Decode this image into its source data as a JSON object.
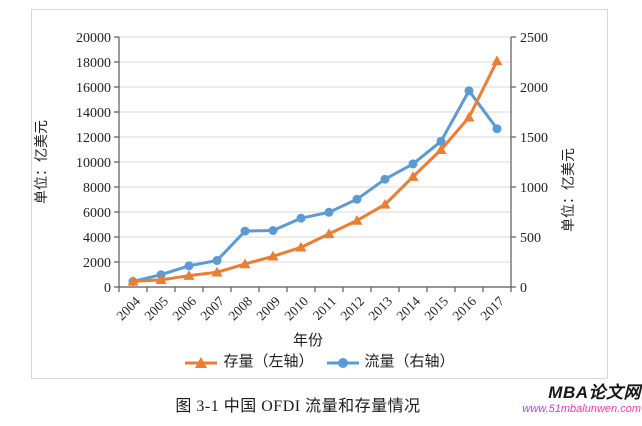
{
  "caption": "图 3-1  中国 OFDI 流量和存量情况",
  "watermark": {
    "site_name": "MBA论文网",
    "site_url": "www.51mbalunwen.com",
    "name_color": "#161616",
    "url_color_start": "#8a4fe8",
    "url_color_end": "#ff2fb4"
  },
  "chart_data": {
    "type": "line",
    "title": "图 3-1 中国 OFDI 流量和存量情况",
    "xlabel": "年份",
    "categories": [
      "2004",
      "2005",
      "2006",
      "2007",
      "2008",
      "2009",
      "2010",
      "2011",
      "2012",
      "2013",
      "2014",
      "2015",
      "2016",
      "2017"
    ],
    "left_axis": {
      "label": "单位：亿美元",
      "lim": [
        0,
        20000
      ],
      "ticks": [
        0,
        2000,
        4000,
        6000,
        8000,
        10000,
        12000,
        14000,
        16000,
        18000,
        20000
      ]
    },
    "right_axis": {
      "label": "单位：亿美元",
      "lim": [
        0,
        2500
      ],
      "ticks": [
        0,
        500,
        1000,
        1500,
        2000,
        2500
      ]
    },
    "grid": true,
    "legend_position": "bottom",
    "series": [
      {
        "name": "存量（左轴）",
        "axis": "left",
        "marker": "triangle",
        "color": "#ED7D31",
        "values": [
          448,
          572,
          906,
          1179,
          1840,
          2458,
          3172,
          4248,
          5319,
          6605,
          8826,
          10979,
          13574,
          18090
        ]
      },
      {
        "name": "流量（右轴）",
        "axis": "right",
        "marker": "circle",
        "color": "#5B9BD5",
        "values": [
          55,
          123,
          212,
          265,
          559,
          565,
          688,
          747,
          878,
          1078,
          1231,
          1457,
          1962,
          1583
        ]
      }
    ],
    "colors": {
      "gridline": "#dadada",
      "axis": "#595959",
      "tick_label": "#1f1f1f"
    }
  }
}
